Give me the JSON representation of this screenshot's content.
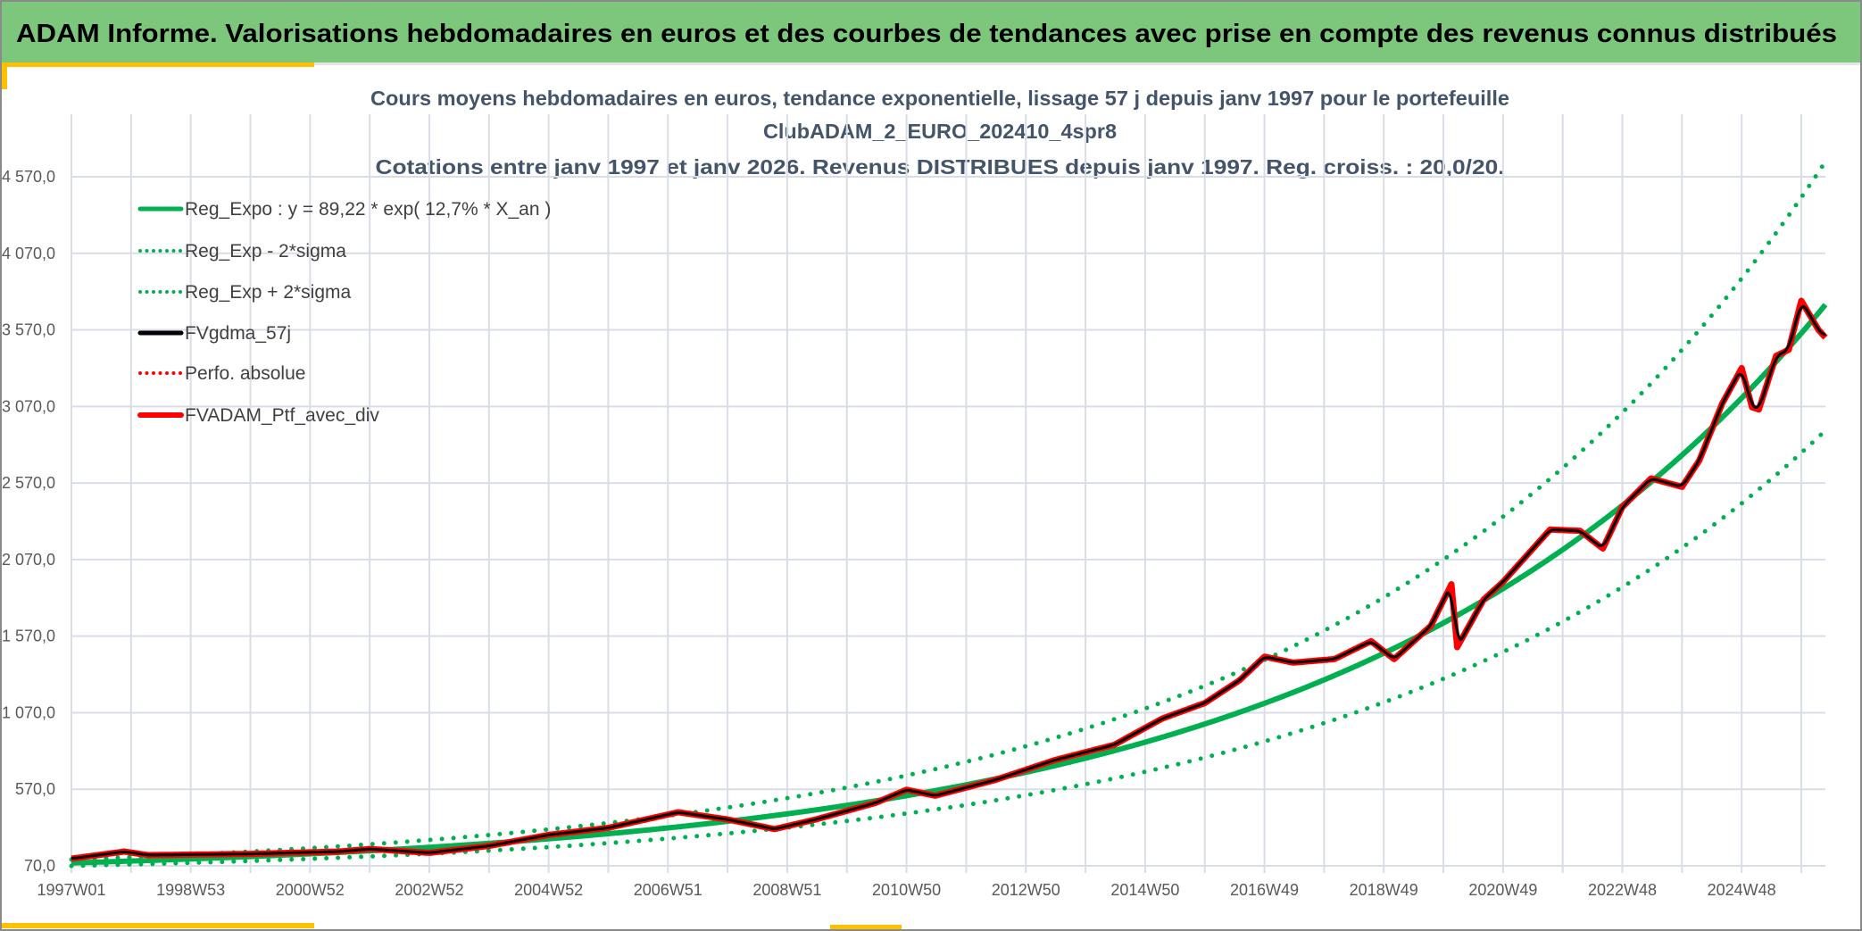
{
  "header": {
    "title": "ADAM Informe. Valorisations hebdomadaires en euros et des courbes de tendances avec prise en compte des revenus connus distribués",
    "background_color": "#7dc77d",
    "accent_color": "#ffc000"
  },
  "chart_data": {
    "type": "line",
    "title_lines": [
      "Cours moyens hebdomadaires en euros, tendance exponentielle, lissage 57 j depuis janv 1997 pour le portefeuille",
      "ClubADAM_2_EURO_202410_4spr8",
      "Cotations entre janv 1997 et janv 2026. Revenus DISTRIBUES depuis janv 1997. Reg. croiss. : 20,0/20."
    ],
    "xlabel": "",
    "ylabel": "",
    "ylim": [
      70,
      4570
    ],
    "y_ticks": [
      "70,0",
      "570,0",
      "1 070,0",
      "1 570,0",
      "2 070,0",
      "2 570,0",
      "3 070,0",
      "3 570,0",
      "4 070,0",
      "4 570,0"
    ],
    "x_ticks": [
      "1997W01",
      "1998W53",
      "2000W52",
      "2002W52",
      "2004W52",
      "2006W51",
      "2008W51",
      "2010W50",
      "2012W50",
      "2014W50",
      "2016W49",
      "2018W49",
      "2020W49",
      "2022W48",
      "2024W48"
    ],
    "xlim": [
      "1997W01",
      "2026W22"
    ],
    "grid": true,
    "legend_position": "top-left",
    "regression": {
      "a": 89.22,
      "rate": 0.127,
      "band_factor_upper": 1.25,
      "band_factor_lower": 0.78
    },
    "series": [
      {
        "name": "Reg_Expo : y = 89,22 * exp( 12,7% *  X_an )",
        "style": "solid",
        "color": "#00b050"
      },
      {
        "name": "Reg_Exp - 2*sigma",
        "style": "dotted",
        "color": "#00b050"
      },
      {
        "name": "Reg_Exp + 2*sigma",
        "style": "dotted",
        "color": "#00b050"
      },
      {
        "name": "FVgdma_57j",
        "style": "solid",
        "color": "#000000"
      },
      {
        "name": "Perfo. absolue",
        "style": "dotted",
        "color": "#ff0000"
      },
      {
        "name": "FVADAM_Ptf_avec_div",
        "style": "solid",
        "color": "#ff0000",
        "points": [
          [
            "1997W01",
            117
          ],
          [
            "1997W47",
            163
          ],
          [
            "1998W16",
            140
          ],
          [
            "2000W01",
            148
          ],
          [
            "2001W26",
            163
          ],
          [
            "2002W01",
            180
          ],
          [
            "2003W01",
            155
          ],
          [
            "2004W01",
            200
          ],
          [
            "2005W01",
            272
          ],
          [
            "2006W01",
            318
          ],
          [
            "2007W10",
            420
          ],
          [
            "2008W01",
            373
          ],
          [
            "2008W42",
            310
          ],
          [
            "2009W26",
            373
          ],
          [
            "2010W26",
            481
          ],
          [
            "2011W01",
            567
          ],
          [
            "2011W26",
            528
          ],
          [
            "2012W26",
            630
          ],
          [
            "2013W26",
            760
          ],
          [
            "2014W26",
            860
          ],
          [
            "2015W16",
            1032
          ],
          [
            "2016W01",
            1133
          ],
          [
            "2016W31",
            1280
          ],
          [
            "2017W01",
            1436
          ],
          [
            "2017W26",
            1397
          ],
          [
            "2018W10",
            1420
          ],
          [
            "2018W42",
            1537
          ],
          [
            "2019W10",
            1420
          ],
          [
            "2019W42",
            1637
          ],
          [
            "2020W08",
            1909
          ],
          [
            "2020W13",
            1498
          ],
          [
            "2020W36",
            1808
          ],
          [
            "2021W01",
            1924
          ],
          [
            "2021W42",
            2266
          ],
          [
            "2022W16",
            2258
          ],
          [
            "2022W36",
            2142
          ],
          [
            "2023W01",
            2413
          ],
          [
            "2023W26",
            2600
          ],
          [
            "2024W01",
            2545
          ],
          [
            "2024W16",
            2716
          ],
          [
            "2024W36",
            3088
          ],
          [
            "2025W01",
            3320
          ],
          [
            "2025W10",
            3065
          ],
          [
            "2025W16",
            3050
          ],
          [
            "2025W31",
            3400
          ],
          [
            "2025W42",
            3440
          ],
          [
            "2026W01",
            3760
          ],
          [
            "2026W16",
            3570
          ],
          [
            "2026W22",
            3520
          ]
        ]
      }
    ]
  }
}
